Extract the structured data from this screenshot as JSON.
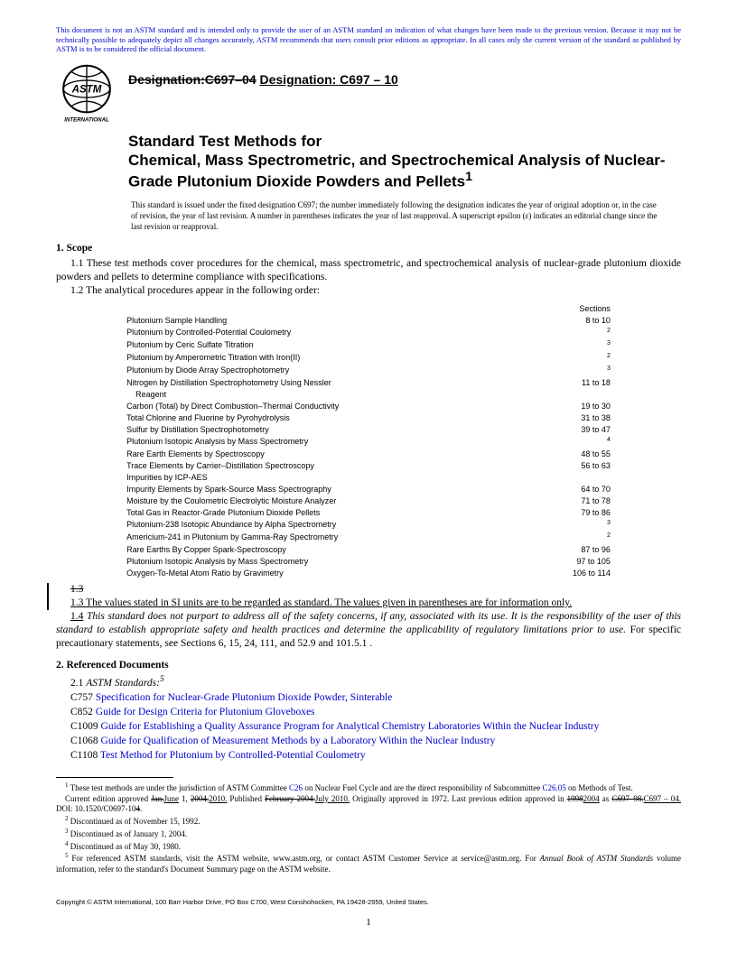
{
  "notice": "This document is not an ASTM standard and is intended only to provide the user of an ASTM standard an indication of what changes have been made to the previous version. Because it may not be technically possible to adequately depict all changes accurately, ASTM recommends that users consult prior editions as appropriate. In all cases only the current version of the standard as published by ASTM is to be considered the official document.",
  "designation_old": "Designation:C697–04",
  "designation_new": "Designation: C697 – 10",
  "title_line1": "Standard Test Methods for",
  "title_rest": "Chemical, Mass Spectrometric, and Spectrochemical Analysis of Nuclear-Grade Plutonium Dioxide Powders and Pellets",
  "title_super": "1",
  "issue_note": "This standard is issued under the fixed designation C697; the number immediately following the designation indicates the year of original adoption or, in the case of revision, the year of last revision. A number in parentheses indicates the year of last reapproval. A superscript epsilon (ε) indicates an editorial change since the last revision or reapproval.",
  "scope_head": "1. Scope",
  "scope_11": "1.1 These test methods cover procedures for the chemical, mass spectrometric, and spectrochemical analysis of nuclear-grade plutonium dioxide powders and pellets to determine compliance with specifications.",
  "scope_12": "1.2 The analytical procedures appear in the following order:",
  "sections_label": "Sections",
  "procedures": [
    {
      "name": "Plutonium Sample Handling",
      "sec": "8 to 10"
    },
    {
      "name": "Plutonium by Controlled-Potential Coulometry",
      "sec": "2",
      "sup": true
    },
    {
      "name": "Plutonium by Ceric Sulfate Titration",
      "sec": "3",
      "sup": true
    },
    {
      "name": "Plutonium by Amperometric Titration with Iron(II)",
      "sec": "2",
      "sup": true
    },
    {
      "name": "Plutonium by Diode Array Spectrophotometry",
      "sec": "3",
      "sup": true
    },
    {
      "name": "Nitrogen by Distillation Spectrophotometry Using Nessler",
      "sec": "11 to 18"
    },
    {
      "name": "Reagent",
      "sec": "",
      "indent": true
    },
    {
      "name": "Carbon (Total) by Direct Combustion–Thermal Conductivity",
      "sec": "19 to 30"
    },
    {
      "name": "Total Chlorine and Fluorine by Pyrohydrolysis",
      "sec": "31 to 38"
    },
    {
      "name": "Sulfur by Distillation Spectrophotometry",
      "sec": "39 to 47"
    },
    {
      "name": "Plutonium Isotopic Analysis by Mass Spectrometry",
      "sec": "4",
      "sup": true
    },
    {
      "name": "Rare Earth Elements by Spectroscopy",
      "sec": "48 to 55"
    },
    {
      "name": "Trace Elements by Carrier–Distillation Spectroscopy",
      "sec": "56 to 63"
    },
    {
      "name": "Impurities by ICP-AES",
      "sec": ""
    },
    {
      "name": "Impurity Elements by Spark-Source Mass Spectrography",
      "sec": "64 to 70"
    },
    {
      "name": "Moisture by the Coulometric Electrolytic Moisture Analyzer",
      "sec": "71 to 78"
    },
    {
      "name": "Total Gas in Reactor-Grade Plutonium Dioxide Pellets",
      "sec": "79 to 86"
    },
    {
      "name": "Plutonium-238 Isotopic Abundance by Alpha Spectrometry",
      "sec": "3",
      "sup": true
    },
    {
      "name": "Americium-241 in Plutonium by Gamma-Ray Spectrometry",
      "sec": "2",
      "sup": true
    },
    {
      "name": "Rare Earths By Copper Spark-Spectroscopy",
      "sec": "87 to 96"
    },
    {
      "name": "Plutonium Isotopic Analysis by Mass Spectrometry",
      "sec": "97 to 105"
    },
    {
      "name": "Oxygen-To-Metal Atom Ratio by Gravimetry",
      "sec": "106 to 114"
    }
  ],
  "scope_13_strike": "1.3",
  "scope_13_under": "1.3 The values stated in SI units are to be regarded as standard. The values given in parentheses are for information only.",
  "scope_14a": "1.4",
  "scope_14b": "This standard does not purport to address all of the safety concerns, if any, associated with its use. It is the responsibility of the user of this standard to establish appropriate safety and health practices and determine the applicability of regulatory limitations prior to use.",
  "scope_14c": " For specific precautionary statements, see Sections 6, 15, 24, 111, and 52.9 and 101.5.1 .",
  "refdoc_head": "2. Referenced Documents",
  "refdoc_21a": "2.1 ",
  "refdoc_21b": "ASTM Standards:",
  "refdoc_21sup": "5",
  "refs": [
    {
      "id": "C757",
      "title": "Specification for Nuclear-Grade Plutonium Dioxide Powder, Sinterable"
    },
    {
      "id": "C852",
      "title": "Guide for Design Criteria for Plutonium Gloveboxes"
    },
    {
      "id": "C1009",
      "title": "Guide for Establishing a Quality Assurance Program for Analytical Chemistry Laboratories Within the Nuclear Industry"
    },
    {
      "id": "C1068",
      "title": "Guide for Qualification of Measurement Methods by a Laboratory Within the Nuclear Industry"
    },
    {
      "id": "C1108",
      "title": "Test Method for Plutonium by Controlled-Potential Coulometry"
    }
  ],
  "fn1a": " These test methods are under the jurisdiction of ASTM Committee ",
  "fn1b": "C26",
  "fn1c": " on Nuclear Fuel Cycle and are the direct responsibility of Subcommittee ",
  "fn1d": "C26.05",
  "fn1e": " on Methods of Test.",
  "fn1_line2a": "Current edition approved ",
  "fn1_line2_strike1": "Jan.",
  "fn1_line2_under1": "June",
  "fn1_line2b": " 1, ",
  "fn1_line2_strike2": "2004.",
  "fn1_line2_under2": "2010.",
  "fn1_line2c": " Published ",
  "fn1_line2_strike3": "February 2004.",
  "fn1_line2_under3": "July 2010.",
  "fn1_line2d": " Originally approved in 1972. Last previous edition approved in ",
  "fn1_line2_strike4": "1998",
  "fn1_line2_under4": "2004",
  "fn1_line2e": " as ",
  "fn1_line2_strike5": "C697–98.",
  "fn1_line2_under5": "C697 – 04.",
  "fn1_line2f": " DOI: 10.1520/C0697-10",
  "fn1_line2_strike6": "4",
  "fn1_line2g": ".",
  "fn2": " Discontinued as of November 15, 1992.",
  "fn3": " Discontinued as of January 1, 2004.",
  "fn4": " Discontinued as of May 30, 1980.",
  "fn5a": " For referenced ASTM standards, visit the ASTM website, www.astm.org, or contact ASTM Customer Service at service@astm.org. For ",
  "fn5b": "Annual Book of ASTM Standards",
  "fn5c": " volume information, refer to the standard's Document Summary page on the ASTM website.",
  "copyright": "Copyright © ASTM International, 100 Barr Harbor Drive, PO Box C700, West Conshohocken, PA 19428-2959, United States.",
  "pagenum": "1",
  "logo_text_top": "INTERNATIONAL",
  "link_color": "#0000d0"
}
